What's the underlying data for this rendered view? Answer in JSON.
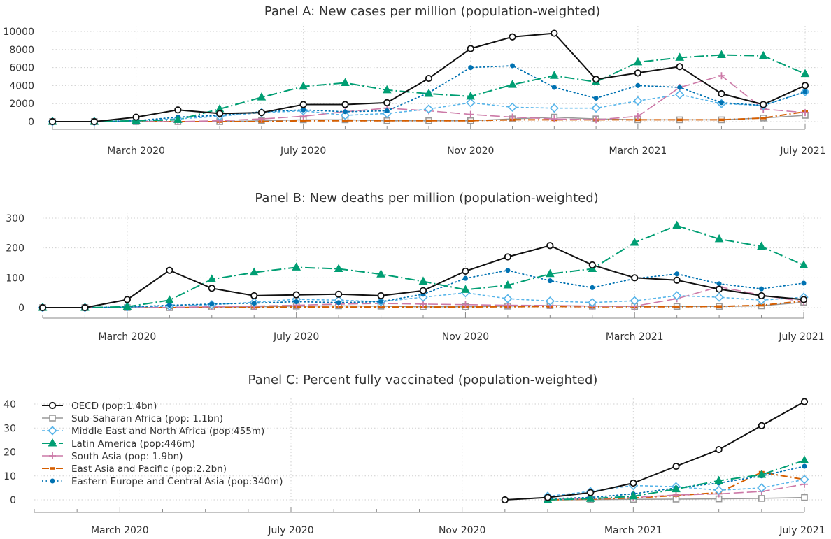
{
  "x_labels": [
    "March 2020",
    "July 2020",
    "Nov 2020",
    "March 2021",
    "July 2021"
  ],
  "legend": [
    "OECD (pop:1.4bn)",
    "Sub-Saharan Africa (pop: 1.1bn)",
    "Middle East and North Africa (pop:455m)",
    "Latin America (pop:446m)",
    "South Asia (pop: 1.9bn)",
    "East Asia and Pacific (pop:2.2bn)",
    "Eastern Europe and Central Asia (pop:340m)"
  ],
  "colors": {
    "oecd": "#111111",
    "ssa": "#999999",
    "mena": "#56b4e9",
    "latam": "#009e73",
    "sasia": "#cc79a7",
    "eap": "#d55e00",
    "eeca": "#0072b2"
  },
  "chart_data": [
    {
      "type": "line",
      "title": "Panel A: New cases per million (population-weighted)",
      "x": [
        "2020-01",
        "2020-02",
        "2020-03",
        "2020-04",
        "2020-05",
        "2020-06",
        "2020-07",
        "2020-08",
        "2020-09",
        "2020-10",
        "2020-11",
        "2020-12",
        "2021-01",
        "2021-02",
        "2021-03",
        "2021-04",
        "2021-05",
        "2021-06",
        "2021-07"
      ],
      "ylim": [
        0,
        10000
      ],
      "yticks": [
        0,
        2000,
        4000,
        6000,
        8000,
        10000
      ],
      "series": [
        {
          "name": "OECD (pop:1.4bn)",
          "values": [
            0,
            0,
            500,
            1300,
            900,
            1000,
            1900,
            1900,
            2100,
            4800,
            8100,
            9400,
            9800,
            4700,
            5400,
            6100,
            3100,
            1900,
            4000
          ]
        },
        {
          "name": "Sub-Saharan Africa (pop: 1.1bn)",
          "values": [
            0,
            0,
            0,
            0,
            0,
            100,
            200,
            200,
            100,
            100,
            100,
            300,
            500,
            300,
            200,
            200,
            200,
            400,
            700
          ]
        },
        {
          "name": "Middle East and North Africa (pop:455m)",
          "values": [
            0,
            0,
            100,
            300,
            600,
            1000,
            1200,
            700,
            900,
            1400,
            2100,
            1600,
            1500,
            1500,
            2300,
            3000,
            2000,
            1800,
            3300
          ]
        },
        {
          "name": "Latin America (pop:446m)",
          "values": [
            0,
            0,
            100,
            200,
            1400,
            2700,
            3900,
            4300,
            3500,
            3100,
            2800,
            4100,
            5100,
            4400,
            6600,
            7100,
            7400,
            7300,
            5300
          ]
        },
        {
          "name": "South Asia (pop: 1.9bn)",
          "values": [
            0,
            0,
            0,
            0,
            100,
            300,
            600,
            1100,
            1500,
            1200,
            800,
            500,
            300,
            200,
            600,
            3800,
            5100,
            1400,
            1000
          ]
        },
        {
          "name": "East Asia and Pacific (pop:2.2bn)",
          "values": [
            0,
            0,
            0,
            0,
            0,
            0,
            100,
            100,
            100,
            100,
            100,
            200,
            200,
            200,
            200,
            200,
            200,
            400,
            1100
          ]
        },
        {
          "name": "Eastern Europe and Central Asia (pop:340m)",
          "values": [
            0,
            0,
            100,
            500,
            700,
            1100,
            1300,
            1100,
            1200,
            3200,
            6000,
            6200,
            3800,
            2600,
            4000,
            3800,
            2100,
            1800,
            3300
          ]
        }
      ]
    },
    {
      "type": "line",
      "title": "Panel B: New deaths per million (population-weighted)",
      "x": [
        "2020-01",
        "2020-02",
        "2020-03",
        "2020-04",
        "2020-05",
        "2020-06",
        "2020-07",
        "2020-08",
        "2020-09",
        "2020-10",
        "2020-11",
        "2020-12",
        "2021-01",
        "2021-02",
        "2021-03",
        "2021-04",
        "2021-05",
        "2021-06",
        "2021-07"
      ],
      "ylim": [
        0,
        300
      ],
      "yticks": [
        0,
        100,
        200,
        300
      ],
      "series": [
        {
          "name": "OECD (pop:1.4bn)",
          "values": [
            0,
            0,
            27,
            125,
            65,
            40,
            43,
            45,
            40,
            57,
            122,
            170,
            208,
            143,
            100,
            92,
            62,
            40,
            27
          ]
        },
        {
          "name": "Sub-Saharan Africa (pop: 1.1bn)",
          "values": [
            0,
            0,
            0,
            0,
            2,
            3,
            5,
            6,
            5,
            3,
            3,
            5,
            7,
            5,
            4,
            4,
            4,
            6,
            18
          ]
        },
        {
          "name": "Middle East and North Africa (pop:455m)",
          "values": [
            0,
            0,
            2,
            5,
            10,
            18,
            28,
            25,
            20,
            35,
            50,
            30,
            22,
            17,
            23,
            40,
            35,
            25,
            35
          ]
        },
        {
          "name": "Latin America (pop:446m)",
          "values": [
            0,
            0,
            3,
            25,
            95,
            118,
            135,
            130,
            112,
            88,
            60,
            75,
            113,
            130,
            218,
            275,
            230,
            205,
            142
          ]
        },
        {
          "name": "South Asia (pop: 1.9bn)",
          "values": [
            0,
            0,
            0,
            1,
            3,
            5,
            8,
            12,
            14,
            12,
            10,
            8,
            7,
            5,
            5,
            30,
            70,
            42,
            20
          ]
        },
        {
          "name": "East Asia and Pacific (pop:2.2bn)",
          "values": [
            0,
            0,
            0,
            0,
            1,
            1,
            2,
            2,
            2,
            2,
            2,
            3,
            4,
            3,
            3,
            3,
            4,
            8,
            22
          ]
        },
        {
          "name": "Eastern Europe and Central Asia (pop:340m)",
          "values": [
            0,
            0,
            2,
            8,
            12,
            15,
            20,
            17,
            20,
            45,
            98,
            125,
            90,
            67,
            97,
            113,
            80,
            63,
            82
          ]
        }
      ]
    },
    {
      "type": "line",
      "title": "Panel C: Percent fully vaccinated (population-weighted)",
      "x": [
        "2020-01",
        "2020-02",
        "2020-03",
        "2020-04",
        "2020-05",
        "2020-06",
        "2020-07",
        "2020-08",
        "2020-09",
        "2020-10",
        "2020-11",
        "2020-12",
        "2021-01",
        "2021-02",
        "2021-03",
        "2021-04",
        "2021-05",
        "2021-06",
        "2021-07"
      ],
      "ylim": [
        0,
        40
      ],
      "yticks": [
        0,
        10,
        20,
        30,
        40
      ],
      "legend_position": "top-left",
      "series": [
        {
          "name": "OECD (pop:1.4bn)",
          "values": [
            null,
            null,
            null,
            null,
            null,
            null,
            null,
            null,
            null,
            null,
            null,
            0,
            1,
            3,
            7,
            14,
            21,
            31,
            41
          ]
        },
        {
          "name": "Sub-Saharan Africa (pop: 1.1bn)",
          "values": [
            null,
            null,
            null,
            null,
            null,
            null,
            null,
            null,
            null,
            null,
            null,
            null,
            0,
            0.1,
            0.2,
            0.3,
            0.4,
            0.6,
            1
          ]
        },
        {
          "name": "Middle East and North Africa (pop:455m)",
          "values": [
            null,
            null,
            null,
            null,
            null,
            null,
            null,
            null,
            null,
            null,
            null,
            null,
            1.5,
            3.5,
            6,
            5.5,
            4,
            5,
            8.5
          ]
        },
        {
          "name": "Latin America (pop:446m)",
          "values": [
            null,
            null,
            null,
            null,
            null,
            null,
            null,
            null,
            null,
            null,
            null,
            null,
            0,
            0.5,
            1.5,
            4.5,
            8,
            10.5,
            16.5
          ]
        },
        {
          "name": "South Asia (pop: 1.9bn)",
          "values": [
            null,
            null,
            null,
            null,
            null,
            null,
            null,
            null,
            null,
            null,
            null,
            null,
            0,
            0.5,
            1,
            2,
            2.5,
            3.5,
            6.5
          ]
        },
        {
          "name": "East Asia and Pacific (pop:2.2bn)",
          "values": [
            null,
            null,
            null,
            null,
            null,
            null,
            null,
            null,
            null,
            null,
            null,
            null,
            0,
            0.3,
            0.8,
            1.8,
            3,
            11.5,
            8.5
          ]
        },
        {
          "name": "Eastern Europe and Central Asia (pop:340m)",
          "values": [
            null,
            null,
            null,
            null,
            null,
            null,
            null,
            null,
            null,
            null,
            null,
            null,
            0.5,
            1,
            2.5,
            5,
            7,
            10,
            14
          ]
        }
      ]
    }
  ]
}
